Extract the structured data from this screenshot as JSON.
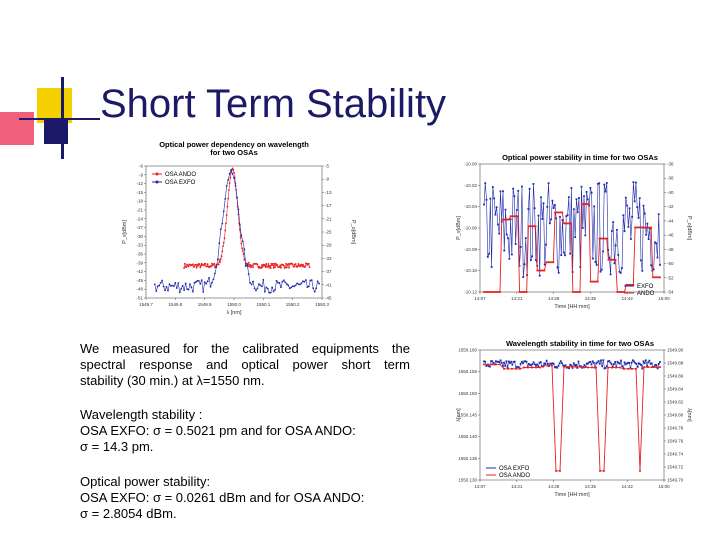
{
  "slide": {
    "title": "Short Term Stability",
    "colors": {
      "title": "#1a1a66",
      "accent_yellow": "#f5d000",
      "accent_red": "#f0607a",
      "accent_blue": "#1a1a66",
      "series_red": "#e82020",
      "series_blue": "#1e2ba8"
    }
  },
  "text": {
    "p1": [
      "We measured for the calibrated equipments the",
      "spectral response and optical power short term",
      "stability (30 min.) at λ=1550 nm."
    ],
    "p2": [
      "Wavelength stability :",
      "OSA EXFO: σ = 0.5021 pm and for OSA ANDO:",
      "σ = 14.3 pm."
    ],
    "p3": [
      "Optical power stability:",
      "OSA EXFO: σ = 0.0261 dBm and for OSA ANDO:",
      "σ = 2.8054 dBm."
    ]
  },
  "chart_data": [
    {
      "type": "scatter",
      "title": [
        "Optical power dependency on wavelength",
        "for two OSAs"
      ],
      "xlabel": "λ [nm]",
      "ylabel": "P_v[dBm]",
      "ylabel_right": "P_o[dBm]",
      "xlim": [
        1549.7,
        1550.3
      ],
      "ylim": [
        -51,
        -6
      ],
      "ylim_right": [
        -45,
        -5
      ],
      "x_ticks": [
        "1549.7",
        "1549.8",
        "1549.9",
        "1550.0",
        "1550.1",
        "1550.2",
        "1550.3"
      ],
      "y_ticks": [
        "-6",
        "-9",
        "-12",
        "-15",
        "-18",
        "-21",
        "-24",
        "-27",
        "-30",
        "-33",
        "-36",
        "-39",
        "-42",
        "-45",
        "-48",
        "-51"
      ],
      "y_ticks_right": [
        "-5",
        "-9",
        "-13",
        "-17",
        "-21",
        "-25",
        "-29",
        "-33",
        "-37",
        "-41",
        "-45"
      ],
      "legend": [
        "OSA ANDO",
        "OSA EXFO"
      ],
      "series": [
        {
          "name": "OSA ANDO",
          "color": "#e82020",
          "peak_x": 1549.995,
          "peak_y": -7,
          "width": 0.025,
          "floor": -40,
          "noise": 0.8,
          "step": 0.0025
        },
        {
          "name": "OSA EXFO",
          "color": "#1e2ba8",
          "peak_x": 1549.99,
          "peak_y": -8,
          "width": 0.04,
          "floor": -47,
          "noise": 2.2,
          "step": 0.005
        }
      ]
    },
    {
      "type": "line",
      "title": [
        "Optical power stability in time for two OSAs"
      ],
      "xlabel": "Time [HH:mm]",
      "ylabel": "P_v[dBm]",
      "ylabel_right": "P_o[dBm]",
      "xlim": [
        0,
        29
      ],
      "ylim": [
        -10.125,
        -9.995
      ],
      "x_ticks": [
        "14:07",
        "14:21",
        "14:28",
        "14:35",
        "14:42",
        "15:00"
      ],
      "y_ticks": [
        "-10.00",
        "-10.02",
        "-10.04",
        "-10.06",
        "-10.08",
        "-10.10",
        "-10.12"
      ],
      "y_ticks_right": [
        "-36",
        "-38",
        "-40",
        "-42",
        "-44",
        "-46",
        "-48",
        "-50",
        "-52",
        "-54"
      ],
      "legend": [
        "EXFO",
        "ANDO"
      ],
      "series": [
        {
          "name": "EXFO",
          "color": "#1e2ba8",
          "center": -10.06,
          "amp": 0.05,
          "n": 140
        },
        {
          "name": "ANDO",
          "color": "#e82020",
          "center": -10.085,
          "amp": 0.05,
          "n": 100,
          "stepped": true
        }
      ]
    },
    {
      "type": "line",
      "title": [
        "Wavelength stability in time for two OSAs"
      ],
      "xlabel": "Time [HH:mm]",
      "ylabel": "λ[nm]",
      "ylabel_right": "λ[nm]",
      "xlim": [
        0,
        29
      ],
      "ylim": [
        1549.9,
        1550.17
      ],
      "x_ticks": [
        "14:07",
        "14:21",
        "14:28",
        "14:35",
        "14:42",
        "15:00"
      ],
      "y_ticks": [
        "1550.160",
        "1550.155",
        "1550.150",
        "1550.145",
        "1550.140",
        "1550.135",
        "1550.130"
      ],
      "y_ticks_right": [
        "1549.90",
        "1549.88",
        "1549.86",
        "1549.84",
        "1549.82",
        "1549.80",
        "1549.78",
        "1549.76",
        "1549.74",
        "1549.72",
        "1549.70"
      ],
      "legend": [
        "OSA EXFO",
        "OSA ANDO"
      ],
      "series": [
        {
          "name": "OSA EXFO",
          "color": "#1e2ba8",
          "center": 1550.14,
          "amp": 0.009,
          "n": 150
        },
        {
          "name": "OSA ANDO",
          "color": "#e82020",
          "center": 1550.136,
          "amp": 0.006,
          "n": 45,
          "stepped": true,
          "drops": [
            0.42,
            0.67,
            0.88
          ]
        }
      ]
    }
  ]
}
